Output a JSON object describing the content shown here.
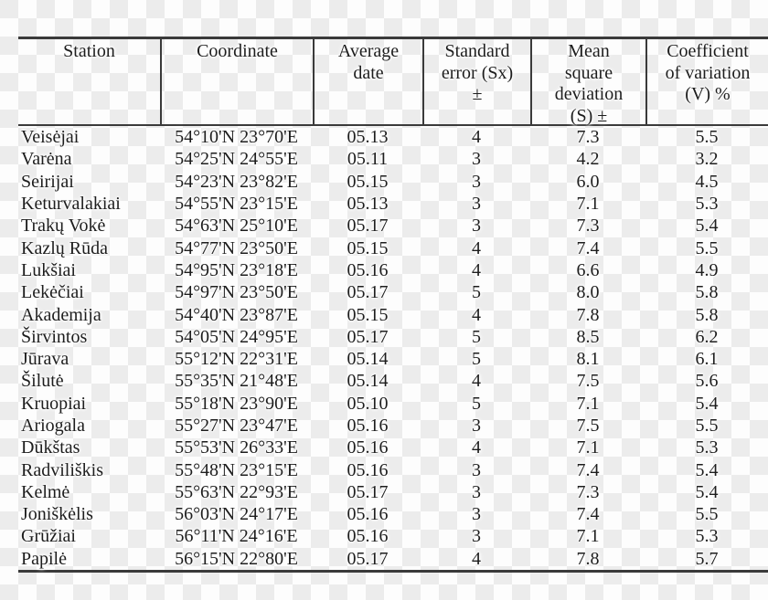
{
  "background": {
    "checker_light": "#fdfdfd",
    "checker_dark": "#ececec"
  },
  "table": {
    "border_color": "#3a3a3a",
    "text_color": "#1d1d1d",
    "columns": [
      {
        "key": "station",
        "label": "Station"
      },
      {
        "key": "coordinate",
        "label": "Coordinate"
      },
      {
        "key": "avg_date",
        "label": "Average\ndate"
      },
      {
        "key": "std_error",
        "label": "Standard\nerror (Sx)\n±"
      },
      {
        "key": "mean_sq_dev",
        "label": "Mean\nsquare\ndeviation\n(S) ±"
      },
      {
        "key": "coeff_var",
        "label": "Coefficient\nof variation\n(V) %"
      }
    ],
    "rows": [
      {
        "station": "Veisėjai",
        "coordinate": "54°10'N 23°70'E",
        "avg_date": "05.13",
        "std_error": "4",
        "mean_sq_dev": "7.3",
        "coeff_var": "5.5"
      },
      {
        "station": "Varėna",
        "coordinate": "54°25'N 24°55'E",
        "avg_date": "05.11",
        "std_error": "3",
        "mean_sq_dev": "4.2",
        "coeff_var": "3.2"
      },
      {
        "station": "Seirijai",
        "coordinate": "54°23'N 23°82'E",
        "avg_date": "05.15",
        "std_error": "3",
        "mean_sq_dev": "6.0",
        "coeff_var": "4.5"
      },
      {
        "station": "Keturvalakiai",
        "coordinate": "54°55'N 23°15'E",
        "avg_date": "05.13",
        "std_error": "3",
        "mean_sq_dev": "7.1",
        "coeff_var": "5.3"
      },
      {
        "station": "Trakų Vokė",
        "coordinate": "54°63'N 25°10'E",
        "avg_date": "05.17",
        "std_error": "3",
        "mean_sq_dev": "7.3",
        "coeff_var": "5.4"
      },
      {
        "station": "Kazlų Rūda",
        "coordinate": "54°77'N 23°50'E",
        "avg_date": "05.15",
        "std_error": "4",
        "mean_sq_dev": "7.4",
        "coeff_var": "5.5"
      },
      {
        "station": "Lukšiai",
        "coordinate": "54°95'N 23°18'E",
        "avg_date": "05.16",
        "std_error": "4",
        "mean_sq_dev": "6.6",
        "coeff_var": "4.9"
      },
      {
        "station": "Lekėčiai",
        "coordinate": "54°97'N 23°50'E",
        "avg_date": "05.17",
        "std_error": "5",
        "mean_sq_dev": "8.0",
        "coeff_var": "5.8"
      },
      {
        "station": "Akademija",
        "coordinate": "54°40'N 23°87'E",
        "avg_date": "05.15",
        "std_error": "4",
        "mean_sq_dev": "7.8",
        "coeff_var": "5.8"
      },
      {
        "station": "Širvintos",
        "coordinate": "54°05'N 24°95'E",
        "avg_date": "05.17",
        "std_error": "5",
        "mean_sq_dev": "8.5",
        "coeff_var": "6.2"
      },
      {
        "station": "Jūrava",
        "coordinate": "55°12'N 22°31'E",
        "avg_date": "05.14",
        "std_error": "5",
        "mean_sq_dev": "8.1",
        "coeff_var": "6.1"
      },
      {
        "station": "Šilutė",
        "coordinate": "55°35'N 21°48'E",
        "avg_date": "05.14",
        "std_error": "4",
        "mean_sq_dev": "7.5",
        "coeff_var": "5.6"
      },
      {
        "station": "Kruopiai",
        "coordinate": "55°18'N 23°90'E",
        "avg_date": "05.10",
        "std_error": "5",
        "mean_sq_dev": "7.1",
        "coeff_var": "5.4"
      },
      {
        "station": "Ariogala",
        "coordinate": "55°27'N 23°47'E",
        "avg_date": "05.16",
        "std_error": "3",
        "mean_sq_dev": "7.5",
        "coeff_var": "5.5"
      },
      {
        "station": "Dūkštas",
        "coordinate": "55°53'N 26°33'E",
        "avg_date": "05.16",
        "std_error": "4",
        "mean_sq_dev": "7.1",
        "coeff_var": "5.3"
      },
      {
        "station": "Radviliškis",
        "coordinate": "55°48'N 23°15'E",
        "avg_date": "05.16",
        "std_error": "3",
        "mean_sq_dev": "7.4",
        "coeff_var": "5.4"
      },
      {
        "station": "Kelmė",
        "coordinate": "55°63'N 22°93'E",
        "avg_date": "05.17",
        "std_error": "3",
        "mean_sq_dev": "7.3",
        "coeff_var": "5.4"
      },
      {
        "station": "Joniškėlis",
        "coordinate": "56°03'N 24°17'E",
        "avg_date": "05.16",
        "std_error": "3",
        "mean_sq_dev": "7.4",
        "coeff_var": "5.5"
      },
      {
        "station": "Grūžiai",
        "coordinate": "56°11'N 24°16'E",
        "avg_date": "05.16",
        "std_error": "3",
        "mean_sq_dev": "7.1",
        "coeff_var": "5.3"
      },
      {
        "station": "Papilė",
        "coordinate": "56°15'N 22°80'E",
        "avg_date": "05.17",
        "std_error": "4",
        "mean_sq_dev": "7.8",
        "coeff_var": "5.7"
      }
    ]
  }
}
